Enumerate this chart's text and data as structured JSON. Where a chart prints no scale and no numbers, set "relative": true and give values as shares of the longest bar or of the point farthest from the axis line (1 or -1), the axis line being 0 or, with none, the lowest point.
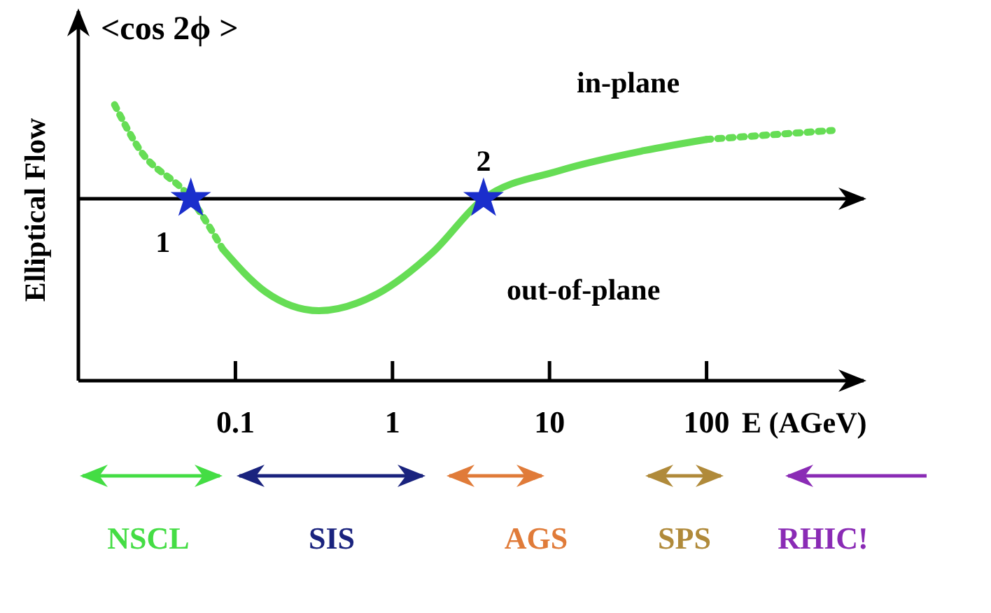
{
  "chart_data": {
    "type": "line",
    "relative": true,
    "log": "x",
    "xlim": [
      0.01,
      1000
    ],
    "xticks": [
      0.1,
      1,
      10,
      100
    ],
    "tick_labels": "x",
    "xlabel": "E (AGeV)",
    "ylabel": "Elliptical Flow",
    "series": [
      {
        "color": "#66dd55",
        "line_style": "dotted",
        "marker": "none",
        "x": [
          0.017,
          0.024,
          0.052,
          0.083
        ],
        "values": [
          0.84,
          0.46,
          0,
          -0.45
        ]
      },
      {
        "color": "#66dd55",
        "line_style": "solid",
        "marker": "none",
        "x": [
          0.083,
          0.155,
          0.34,
          0.8,
          1.8,
          3.8,
          11.5,
          40,
          100
        ],
        "values": [
          -0.45,
          -0.83,
          -1,
          -0.85,
          -0.48,
          0,
          0.25,
          0.43,
          0.53
        ]
      },
      {
        "color": "#66dd55",
        "line_style": "dotted",
        "marker": "none",
        "x": [
          100,
          630
        ],
        "values": [
          0.53,
          0.61
        ]
      },
      {
        "type": "scatter",
        "color": "#1a2ecc",
        "marker": "star",
        "x": [
          0.052,
          3.8
        ],
        "values": [
          0,
          0
        ]
      }
    ],
    "ref_lines": [
      {
        "axis": "y",
        "value": 0,
        "color": "#000000"
      }
    ],
    "annotations": [
      "<cos 2ϕ >",
      "in-plane",
      "out-of-plane",
      {
        "text": "1",
        "x": 0.052,
        "y": 0
      },
      {
        "text": "2",
        "x": 3.8,
        "y": 0
      },
      "NSCL",
      "SIS",
      "AGS",
      "SPS",
      "RHIC!"
    ]
  }
}
